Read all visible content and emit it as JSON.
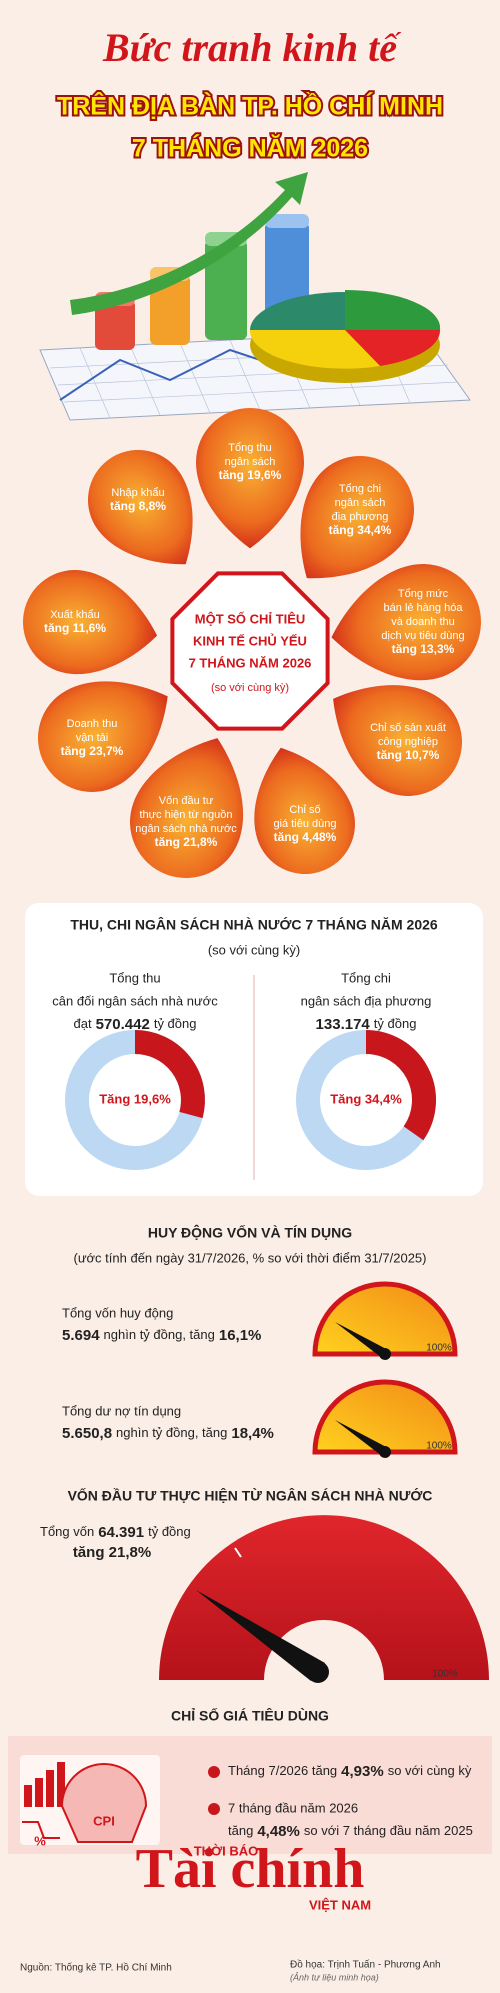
{
  "header": {
    "script_title": "Bức tranh kinh tế",
    "title_line1": "TRÊN ĐỊA BÀN TP. HỒ CHÍ MINH",
    "title_line2": "7 THÁNG NĂM 2026"
  },
  "indicators": {
    "center": [
      "MỘT SỐ CHỈ TIÊU",
      "KINH TẾ CHỦ YẾU",
      "7 THÁNG NĂM 2026",
      "(so với cùng kỳ)"
    ],
    "items": [
      {
        "label": [
          "Tổng thu",
          "ngân sách"
        ],
        "change": "tăng 19,6%"
      },
      {
        "label": [
          "Tổng chi",
          "ngân sách",
          "địa phương"
        ],
        "change": "tăng 34,4%"
      },
      {
        "label": [
          "Tổng mức",
          "bán lẻ hàng hóa",
          "và doanh thu",
          "dịch vụ tiêu dùng"
        ],
        "change": "tăng 13,3%"
      },
      {
        "label": [
          "Chỉ số sản xuất",
          "công nghiệp"
        ],
        "change": "tăng 10,7%"
      },
      {
        "label": [
          "Chỉ số",
          "giá tiêu dùng"
        ],
        "change": "tăng 4,48%"
      },
      {
        "label": [
          "Vốn đầu tư",
          "thực hiện từ nguồn",
          "ngân sách nhà nước"
        ],
        "change": "tăng 21,8%"
      },
      {
        "label": [
          "Doanh thu",
          "vận tải"
        ],
        "change": "tăng 23,7%"
      },
      {
        "label": [
          "Xuất khẩu"
        ],
        "change": "tăng 11,6%"
      },
      {
        "label": [
          "Nhập khẩu"
        ],
        "change": "tăng 8,8%"
      }
    ]
  },
  "budget": {
    "title": "THU, CHI NGÂN SÁCH NHÀ NƯỚC 7 THÁNG NĂM 2026",
    "subtitle": "(so với cùng kỳ)",
    "revenue": {
      "lines": [
        "Tổng thu",
        "cân đối ngân sách nhà nước"
      ],
      "prefix": "đạt",
      "amount": "570.442",
      "unit": "tỷ đồng",
      "change": "Tăng 19,6%"
    },
    "spending": {
      "lines": [
        "Tổng chi",
        "ngân sách địa phương"
      ],
      "amount": "133.174",
      "unit": "tỷ đồng",
      "change": "Tăng 34,4%"
    }
  },
  "capital": {
    "title": "HUY ĐỘNG VỐN VÀ TÍN DỤNG",
    "subtitle": "(ước tính đến ngày 31/7/2026, % so với thời điểm 31/7/2025)",
    "items": [
      {
        "label": "Tổng vốn huy động",
        "amount": "5.694",
        "unit": "nghìn tỷ đồng, tăng",
        "change": "16,1%",
        "scale_max": "100%"
      },
      {
        "label": "Tổng dư nợ tín dụng",
        "amount": "5.650,8",
        "unit": "nghìn tỷ đồng, tăng",
        "change": "18,4%",
        "scale_max": "100%"
      }
    ]
  },
  "investment": {
    "title": "VỐN ĐẦU TƯ THỰC HIỆN TỪ NGÂN SÁCH NHÀ NƯỚC",
    "prefix": "Tổng vốn",
    "amount": "64.391",
    "unit": "tỷ đồng",
    "change": "tăng 21,8%",
    "scale_max": "100%"
  },
  "cpi": {
    "title": "CHỈ SỐ GIÁ TIÊU DÙNG",
    "icon_label": "CPI",
    "icon_percent": "%",
    "items": [
      {
        "prefix": "Tháng 7/2026 tăng",
        "value": "4,93%",
        "suffix": "so với cùng kỳ"
      },
      {
        "line1": "7 tháng đầu năm 2026",
        "prefix": "tăng",
        "value": "4,48%",
        "suffix": "so với 7 tháng đầu năm 2025"
      }
    ]
  },
  "footer": {
    "brand_top": "THỜI BÁO",
    "brand": "Tài chính",
    "brand_bottom": "VIỆT NAM",
    "source": "Nguồn: Thống kê TP. Hồ Chí Minh",
    "design": "Đồ họa: Trịnh Tuấn - Phương Anh",
    "photo_note": "(Ảnh tư liệu minh họa)"
  }
}
